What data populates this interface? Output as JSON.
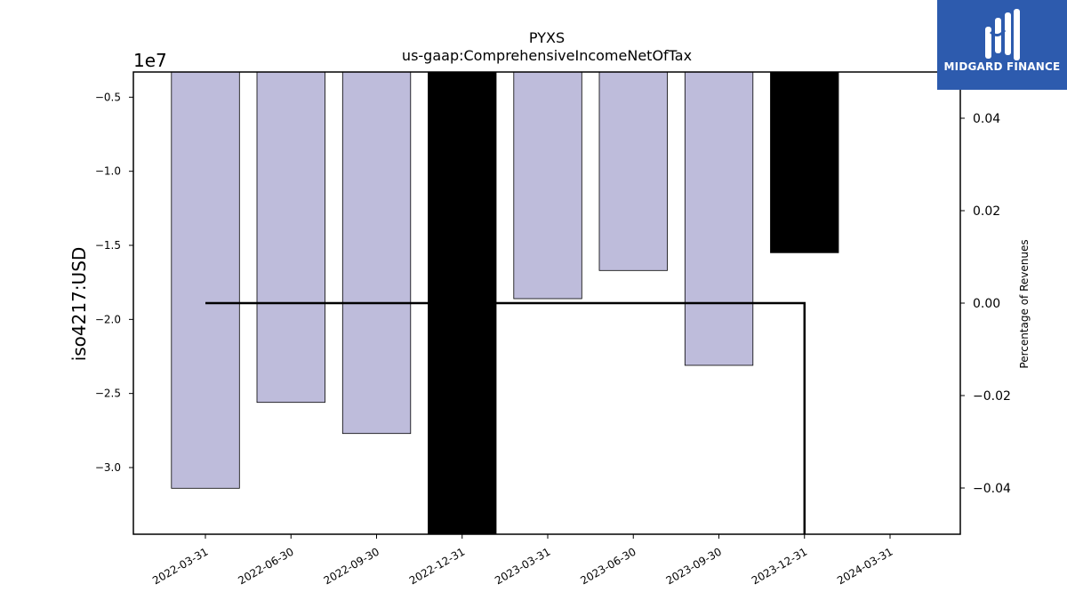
{
  "logo": {
    "text": "MIDGARD FINANCE",
    "background": "#2d5bae"
  },
  "chart_data": {
    "type": "bar",
    "title": "PYXS",
    "subtitle": "us-gaap:ComprehensiveIncomeNetOfTax",
    "ylabel": "iso4217:USD",
    "y2label": "Percentage of Revenues",
    "offset_label": "1e7",
    "ylim": [
      -34500000,
      -3300000
    ],
    "y2lim": [
      -0.05,
      0.05
    ],
    "yticks": [
      -5000000,
      -10000000,
      -15000000,
      -20000000,
      -25000000,
      -30000000
    ],
    "ytick_labels": [
      "−0.5",
      "−1.0",
      "−1.5",
      "−2.0",
      "−2.5",
      "−3.0"
    ],
    "y2ticks": [
      0.04,
      0.02,
      0.0,
      -0.02,
      -0.04
    ],
    "y2tick_labels": [
      "0.04",
      "0.02",
      "0.00",
      "−0.02",
      "−0.04"
    ],
    "categories": [
      "2022-03-31",
      "2022-06-30",
      "2022-09-30",
      "2022-12-31",
      "2023-03-31",
      "2023-06-30",
      "2023-09-30",
      "2023-12-31",
      "2024-03-31"
    ],
    "series": [
      {
        "values": [
          -31400000,
          -25600000,
          -27700000,
          -34500000,
          -18600000,
          -16700000,
          -23100000,
          -15500000,
          null
        ],
        "colors": [
          "#bebcdb",
          "#bebcdb",
          "#bebcdb",
          "#000000",
          "#bebcdb",
          "#bebcdb",
          "#bebcdb",
          "#000000",
          null
        ]
      },
      {
        "type": "line",
        "axis": "secondary",
        "values": [
          0.0,
          0.0,
          0.0,
          0.0,
          0.0,
          0.0,
          0.0,
          0.0,
          -0.05
        ],
        "color": "#000000"
      }
    ],
    "grid": false
  }
}
